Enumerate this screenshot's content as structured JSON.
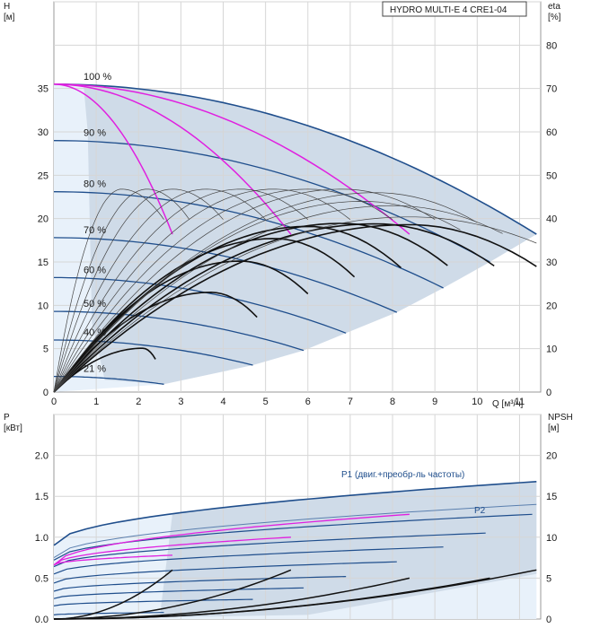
{
  "chart_data": [
    {
      "type": "line",
      "title": "HYDRO MULTI-E 4 CRE1-04",
      "xlabel": "Q [м³/ч]",
      "ylabel": "H [м]",
      "y2label": "eta [%]",
      "ylabel_lines": [
        "H",
        "[м]"
      ],
      "y2label_lines": [
        "eta",
        "[%]"
      ],
      "xlim": [
        0,
        11.5
      ],
      "ylim": [
        0,
        45
      ],
      "y2lim": [
        0,
        90
      ],
      "x_ticks": [
        "0",
        "1",
        "2",
        "3",
        "4",
        "5",
        "6",
        "7",
        "8",
        "9",
        "10",
        "11"
      ],
      "y_ticks": [
        "0",
        "5",
        "10",
        "15",
        "20",
        "25",
        "30",
        "35"
      ],
      "y2_ticks": [
        "0",
        "10",
        "20",
        "30",
        "40",
        "50",
        "60",
        "70",
        "80"
      ],
      "grid": true,
      "speed_labels": [
        "100 %",
        "90 %",
        "80 %",
        "70 %",
        "60 %",
        "50 %",
        "40 %",
        "21 %"
      ],
      "qh_curves": [
        {
          "name": "100 %",
          "h0": 35.5,
          "qmax": 11.4,
          "hend": 18.2
        },
        {
          "name": "90 %",
          "h0": 29.0,
          "qmax": 10.3,
          "hend": 15.0
        },
        {
          "name": "80 %",
          "h0": 23.1,
          "qmax": 9.2,
          "hend": 12.0
        },
        {
          "name": "70 %",
          "h0": 17.8,
          "qmax": 8.1,
          "hend": 9.2
        },
        {
          "name": "60 %",
          "h0": 13.2,
          "qmax": 6.9,
          "hend": 6.8
        },
        {
          "name": "50 %",
          "h0": 9.3,
          "qmax": 5.9,
          "hend": 4.8
        },
        {
          "name": "40 %",
          "h0": 6.0,
          "qmax": 4.7,
          "hend": 3.1
        },
        {
          "name": "21 %",
          "h0": 1.8,
          "qmax": 2.6,
          "hend": 0.9
        }
      ],
      "system_curves_endpoints": [
        [
          2.8,
          18.2
        ],
        [
          5.6,
          18.2
        ],
        [
          8.4,
          18.2
        ]
      ],
      "efficiency_curves": [
        {
          "qmax": 2.4,
          "peak": 10.1,
          "qpeak": 2.1
        },
        {
          "qmax": 4.8,
          "peak": 23.0,
          "qpeak": 3.7
        },
        {
          "qmax": 6.0,
          "peak": 30.2,
          "qpeak": 4.4
        },
        {
          "qmax": 7.1,
          "peak": 35.4,
          "qpeak": 5.2
        },
        {
          "qmax": 8.2,
          "peak": 38.2,
          "qpeak": 6.0
        },
        {
          "qmax": 9.3,
          "peak": 38.9,
          "qpeak": 6.8
        },
        {
          "qmax": 10.4,
          "peak": 38.8,
          "qpeak": 7.6
        },
        {
          "qmax": 11.4,
          "peak": 38.6,
          "qpeak": 8.4
        }
      ]
    },
    {
      "type": "line",
      "xlabel": "",
      "ylabel": "P [кВт]",
      "y2label": "NPSH [м]",
      "ylabel_lines": [
        "P",
        "[кВт]"
      ],
      "y2label_lines": [
        "NPSH",
        "[м]"
      ],
      "ylim": [
        0,
        2.5
      ],
      "y2lim": [
        0,
        25
      ],
      "y_ticks": [
        "0.0",
        "0.5",
        "1.0",
        "1.5",
        "2.0"
      ],
      "y2_ticks": [
        "0",
        "5",
        "10",
        "15",
        "20"
      ],
      "grid": true,
      "series_labels": [
        "P1 (двиг.+преобр-ль частоты)",
        "P2"
      ],
      "p1_envelope": {
        "p_start": 0.9,
        "p_end": 1.68
      },
      "p2_envelope": {
        "p_start": 0.75,
        "p_end": 1.4
      },
      "power_curves": [
        {
          "qmax": 11.3,
          "p0": 0.72,
          "pend": 1.28
        },
        {
          "qmax": 10.2,
          "p0": 0.64,
          "pend": 1.05
        },
        {
          "qmax": 9.2,
          "p0": 0.55,
          "pend": 0.88
        },
        {
          "qmax": 8.1,
          "p0": 0.44,
          "pend": 0.7
        },
        {
          "qmax": 6.9,
          "p0": 0.34,
          "pend": 0.52
        },
        {
          "qmax": 5.9,
          "p0": 0.25,
          "pend": 0.38
        },
        {
          "qmax": 4.7,
          "p0": 0.16,
          "pend": 0.24
        },
        {
          "qmax": 2.6,
          "p0": 0.05,
          "pend": 0.08
        }
      ],
      "npsh_curves": [
        {
          "qmax": 11.4,
          "end": 6.0
        },
        {
          "qmax": 10.3,
          "end": 5.0
        },
        {
          "qmax": 8.4,
          "end": 5.0
        },
        {
          "qmax": 5.6,
          "end": 6.0
        },
        {
          "qmax": 2.8,
          "end": 6.0
        }
      ]
    }
  ]
}
